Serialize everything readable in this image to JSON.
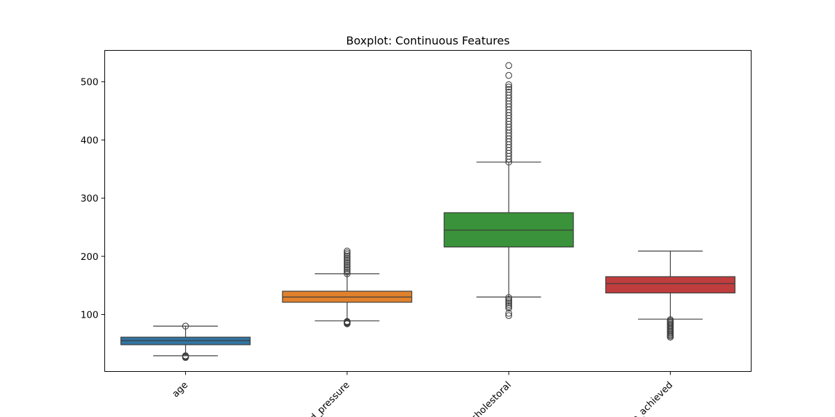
{
  "chart_data": {
    "type": "boxplot",
    "title": "Boxplot: Continuous Features",
    "xlabel": "",
    "ylabel": "",
    "ylim": [
      2,
      554
    ],
    "yticks": [
      100,
      200,
      300,
      400,
      500
    ],
    "ytick_labels": [
      "100",
      "200",
      "300",
      "400",
      "500"
    ],
    "grid": false,
    "legend": "none",
    "categories": [
      "age",
      "resting_blood_pressure",
      "serum_cholestoral",
      "max_heart_rate_achieved"
    ],
    "category_labels_visible": [
      "age",
      "d_pressure",
      "cholestoral",
      "e_achieved"
    ],
    "boxes": [
      {
        "name": "age",
        "color": "#3274a1",
        "whisker_low": 29,
        "q1": 48,
        "median": 55,
        "q3": 61,
        "whisker_high": 80,
        "outliers_low": [
          26,
          27,
          28,
          29
        ],
        "outliers_high": [
          80
        ]
      },
      {
        "name": "resting_blood_pressure",
        "color": "#e1812c",
        "whisker_low": 89,
        "q1": 121,
        "median": 130,
        "q3": 140,
        "whisker_high": 170,
        "outliers_low": [
          84,
          85,
          86,
          87,
          88
        ],
        "outliers_high": [
          170,
          173,
          176,
          179,
          182,
          185,
          188,
          191,
          194,
          197,
          200,
          203,
          206,
          209
        ]
      },
      {
        "name": "serum_cholestoral",
        "color": "#3a923a",
        "whisker_low": 130,
        "q1": 216,
        "median": 245,
        "q3": 275,
        "whisker_high": 362,
        "outliers_low": [
          98,
          102,
          111,
          114,
          117,
          120,
          123,
          126,
          129
        ],
        "outliers_high": [
          362,
          367,
          372,
          377,
          382,
          387,
          392,
          397,
          402,
          407,
          412,
          417,
          422,
          427,
          432,
          437,
          442,
          447,
          452,
          457,
          462,
          467,
          472,
          477,
          482,
          487,
          491,
          495,
          511,
          528
        ]
      },
      {
        "name": "max_heart_rate_achieved",
        "color": "#c03d3e",
        "whisker_low": 92,
        "q1": 137,
        "median": 153,
        "q3": 165,
        "whisker_high": 209,
        "outliers_low": [
          61,
          63,
          65,
          67,
          69,
          71,
          73,
          75,
          77,
          79,
          81,
          83,
          85,
          87,
          89,
          91
        ]
      }
    ]
  }
}
